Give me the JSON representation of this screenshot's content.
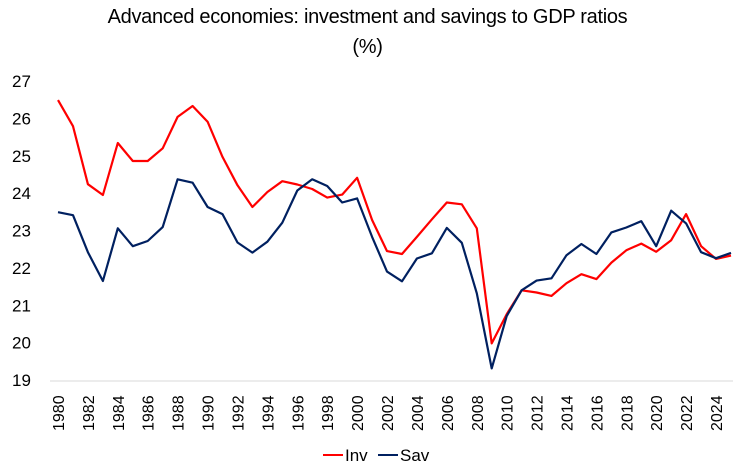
{
  "chart_data": {
    "type": "line",
    "title": "Advanced economies: investment and savings to GDP ratios",
    "subtitle": "(%)",
    "xlabel": "",
    "ylabel": "",
    "ylim": [
      19,
      27
    ],
    "yticks": [
      19,
      20,
      21,
      22,
      23,
      24,
      25,
      26,
      27
    ],
    "xticks": [
      "1980",
      "1982",
      "1984",
      "1986",
      "1988",
      "1990",
      "1992",
      "1994",
      "1996",
      "1998",
      "2000",
      "2002",
      "2004",
      "2006",
      "2008",
      "2010",
      "2012",
      "2014",
      "2016",
      "2018",
      "2020",
      "2022",
      "2024"
    ],
    "grid": false,
    "legend": "bottom-center",
    "x": [
      1980,
      1981,
      1982,
      1983,
      1984,
      1985,
      1986,
      1987,
      1988,
      1989,
      1990,
      1991,
      1992,
      1993,
      1994,
      1995,
      1996,
      1997,
      1998,
      1999,
      2000,
      2001,
      2002,
      2003,
      2004,
      2005,
      2006,
      2007,
      2008,
      2009,
      2010,
      2011,
      2012,
      2013,
      2014,
      2015,
      2016,
      2017,
      2018,
      2019,
      2020,
      2021,
      2022,
      2023,
      2024,
      2025
    ],
    "series": [
      {
        "name": "Inv",
        "color": "#ff0000",
        "values": [
          26.49,
          25.79,
          24.24,
          23.95,
          25.34,
          24.86,
          24.86,
          25.2,
          26.04,
          26.33,
          25.91,
          24.97,
          24.21,
          23.63,
          24.03,
          24.32,
          24.23,
          24.11,
          23.88,
          23.96,
          24.41,
          23.28,
          22.45,
          22.37,
          22.83,
          23.3,
          23.75,
          23.7,
          23.06,
          19.98,
          20.76,
          21.4,
          21.34,
          21.25,
          21.59,
          21.83,
          21.7,
          22.14,
          22.47,
          22.65,
          22.43,
          22.74,
          23.44,
          22.58,
          22.24,
          22.33
        ]
      },
      {
        "name": "Sav",
        "color": "#002060",
        "values": [
          23.49,
          23.41,
          22.42,
          21.65,
          23.06,
          22.58,
          22.72,
          23.09,
          24.37,
          24.28,
          23.63,
          23.44,
          22.68,
          22.41,
          22.7,
          23.21,
          24.07,
          24.37,
          24.19,
          23.75,
          23.86,
          22.83,
          21.9,
          21.64,
          22.25,
          22.39,
          23.07,
          22.67,
          21.32,
          19.31,
          20.71,
          21.4,
          21.66,
          21.72,
          22.34,
          22.64,
          22.37,
          22.95,
          23.08,
          23.25,
          22.58,
          23.53,
          23.19,
          22.42,
          22.26,
          22.4
        ]
      }
    ]
  }
}
